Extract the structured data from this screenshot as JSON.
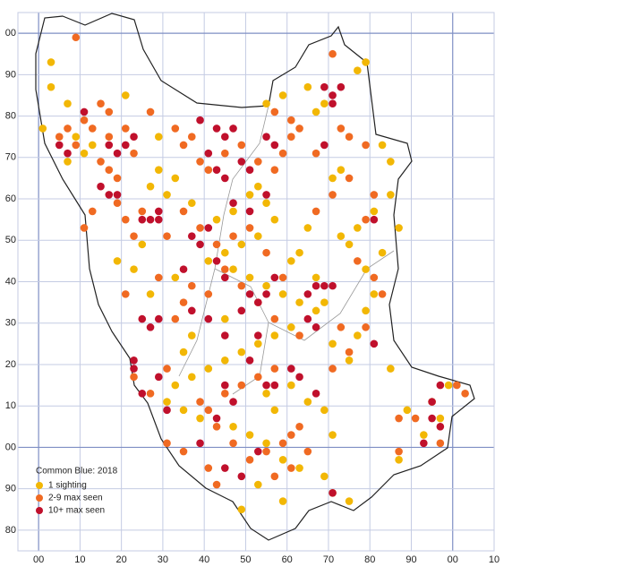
{
  "chart_data": {
    "type": "scatter",
    "legend_title": "Common Blue:  2018",
    "legend": "lower left",
    "xlim": [
      -5,
      110
    ],
    "ylim": [
      -25,
      105
    ],
    "xticks": [
      {
        "value": 0,
        "label": "00"
      },
      10,
      20,
      30,
      40,
      50,
      60,
      70,
      80,
      90,
      {
        "value": 100,
        "label": "00"
      },
      {
        "value": 110,
        "label": "10"
      }
    ],
    "yticks": [
      {
        "value": 100,
        "label": "00"
      },
      90,
      80,
      70,
      60,
      50,
      40,
      30,
      20,
      10,
      {
        "value": 0,
        "label": "00"
      },
      {
        "value": -10,
        "label": "90"
      },
      {
        "value": -20,
        "label": "80"
      }
    ],
    "grid": true,
    "series": [
      {
        "name": "1 sighting",
        "color": "#f2b705",
        "x": [
          3,
          3,
          7,
          1,
          9,
          13,
          11,
          7,
          21,
          29,
          29,
          27,
          31,
          33,
          37,
          43,
          47,
          51,
          53,
          55,
          57,
          53,
          49,
          45,
          41,
          47,
          51,
          55,
          59,
          63,
          67,
          61,
          57,
          53,
          49,
          45,
          41,
          37,
          33,
          31,
          35,
          39,
          47,
          51,
          55,
          59,
          63,
          69,
          71,
          75,
          49,
          53,
          59,
          73,
          77,
          81,
          85,
          87,
          83,
          79,
          75,
          71,
          73,
          69,
          77,
          79,
          67,
          65,
          59,
          55,
          83,
          85,
          85,
          89,
          93,
          95,
          97,
          99,
          87,
          19,
          23,
          25,
          27,
          33,
          37,
          35,
          45,
          61,
          63,
          65,
          67,
          69,
          79,
          81,
          71,
          75,
          77,
          61,
          65,
          69,
          71,
          57,
          55
        ],
        "values": [
          93,
          87,
          83,
          77,
          75,
          73,
          71,
          69,
          85,
          75,
          67,
          63,
          61,
          65,
          59,
          55,
          57,
          61,
          63,
          59,
          55,
          51,
          49,
          47,
          45,
          43,
          41,
          39,
          37,
          35,
          33,
          29,
          27,
          25,
          23,
          21,
          19,
          17,
          15,
          11,
          9,
          7,
          5,
          3,
          1,
          -3,
          -5,
          -7,
          -11,
          -13,
          -15,
          -9,
          -13,
          51,
          53,
          57,
          61,
          53,
          47,
          43,
          49,
          65,
          67,
          83,
          91,
          93,
          81,
          87,
          85,
          83,
          73,
          69,
          19,
          9,
          3,
          11,
          7,
          15,
          -3,
          45,
          43,
          49,
          37,
          41,
          27,
          23,
          31,
          45,
          47,
          53,
          41,
          35,
          33,
          37,
          25,
          21,
          27,
          15,
          11,
          9,
          3,
          9,
          13
        ]
      },
      {
        "name": "2-9 max seen",
        "color": "#f06a22",
        "x": [
          9,
          71,
          15,
          17,
          5,
          7,
          9,
          13,
          17,
          21,
          23,
          15,
          17,
          19,
          27,
          33,
          35,
          37,
          39,
          41,
          45,
          49,
          53,
          57,
          59,
          61,
          63,
          57,
          61,
          67,
          73,
          75,
          79,
          81,
          79,
          77,
          81,
          83,
          79,
          75,
          71,
          73,
          63,
          57,
          53,
          49,
          45,
          41,
          39,
          43,
          47,
          51,
          55,
          59,
          61,
          63,
          65,
          61,
          57,
          43,
          41,
          31,
          35,
          23,
          27,
          31,
          33,
          35,
          37,
          41,
          45,
          49,
          53,
          57,
          59,
          55,
          51,
          47,
          43,
          39,
          35,
          31,
          25,
          21,
          23,
          19,
          13,
          11,
          21,
          29,
          67,
          71,
          75,
          87,
          91,
          101,
          103,
          97,
          87,
          11
        ],
        "values": [
          99,
          95,
          83,
          81,
          75,
          77,
          73,
          77,
          75,
          77,
          71,
          69,
          67,
          65,
          81,
          77,
          73,
          75,
          69,
          67,
          71,
          73,
          69,
          67,
          71,
          79,
          77,
          81,
          75,
          71,
          77,
          75,
          73,
          61,
          55,
          45,
          41,
          37,
          29,
          23,
          19,
          29,
          27,
          19,
          17,
          15,
          13,
          9,
          11,
          5,
          1,
          -3,
          -1,
          1,
          3,
          5,
          -1,
          -5,
          -7,
          -9,
          -5,
          1,
          -1,
          17,
          13,
          19,
          31,
          35,
          39,
          37,
          43,
          39,
          35,
          31,
          41,
          47,
          53,
          51,
          49,
          53,
          57,
          51,
          57,
          55,
          51,
          59,
          57,
          53,
          37,
          41,
          57,
          61,
          65,
          7,
          7,
          15,
          13,
          1,
          -1,
          79
        ]
      },
      {
        "name": "10+ max seen",
        "color": "#c0102c",
        "x": [
          11,
          5,
          7,
          17,
          21,
          23,
          19,
          15,
          17,
          19,
          25,
          27,
          29,
          39,
          43,
          45,
          47,
          41,
          43,
          45,
          49,
          51,
          55,
          57,
          55,
          51,
          47,
          41,
          39,
          37,
          43,
          45,
          35,
          37,
          41,
          45,
          49,
          51,
          53,
          55,
          57,
          65,
          67,
          69,
          71,
          65,
          67,
          53,
          51,
          45,
          47,
          43,
          55,
          57,
          61,
          63,
          67,
          69,
          69,
          71,
          73,
          71,
          81,
          81,
          23,
          23,
          25,
          29,
          27,
          29,
          31,
          39,
          45,
          49,
          53,
          71,
          95,
          95,
          97,
          97,
          93,
          25,
          29
        ],
        "values": [
          81,
          73,
          71,
          73,
          73,
          75,
          71,
          63,
          61,
          61,
          55,
          55,
          57,
          79,
          77,
          75,
          77,
          71,
          67,
          65,
          69,
          67,
          75,
          73,
          61,
          57,
          59,
          53,
          49,
          51,
          45,
          41,
          43,
          33,
          31,
          27,
          33,
          37,
          35,
          37,
          41,
          37,
          39,
          39,
          39,
          31,
          29,
          27,
          21,
          15,
          11,
          7,
          15,
          15,
          19,
          17,
          13,
          73,
          87,
          85,
          87,
          83,
          55,
          25,
          21,
          19,
          13,
          17,
          29,
          31,
          9,
          1,
          -5,
          -7,
          -1,
          -11,
          7,
          11,
          15,
          5,
          1,
          31,
          55
        ]
      }
    ]
  }
}
